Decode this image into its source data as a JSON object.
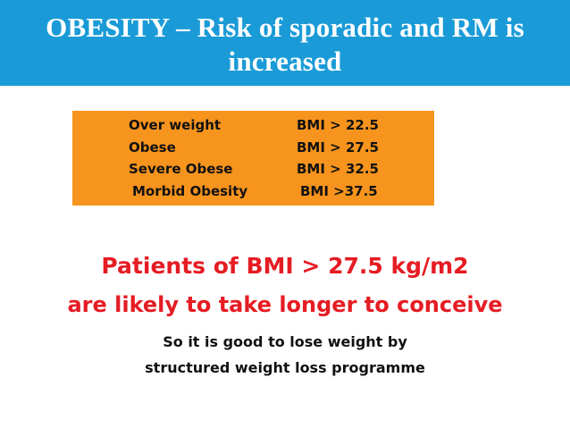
{
  "header": {
    "title_line1": "OBESITY – Risk of sporadic and RM is",
    "title_line2": "increased"
  },
  "bmi_table": {
    "rows": [
      {
        "category": "Over weight",
        "value": "BMI > 22.5"
      },
      {
        "category": "Obese",
        "value": "BMI > 27.5"
      },
      {
        "category": "Severe Obese",
        "value": "BMI > 32.5"
      },
      {
        "category": "Morbid Obesity",
        "value": "BMI >37.5"
      }
    ]
  },
  "highlight": {
    "line1": "Patients of BMI > 27.5 kg/m2",
    "line2": "are likely to take longer to conceive"
  },
  "note": {
    "line1": "So it is good to lose weight by",
    "line2": "structured weight loss programme"
  },
  "colors": {
    "header_bg": "#1a9bd7",
    "box_bg": "#f7941d",
    "highlight_text": "#e51c23"
  }
}
